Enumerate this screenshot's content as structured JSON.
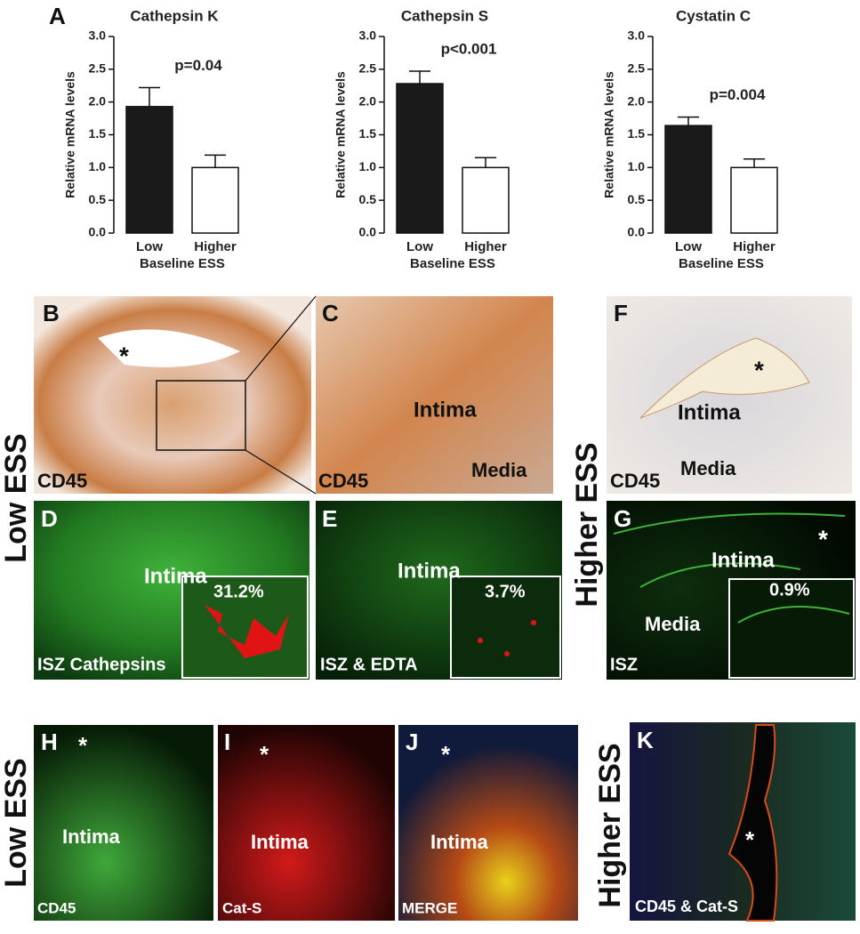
{
  "figure_label": "A",
  "chart_data": [
    {
      "type": "bar",
      "title": "Cathepsin K",
      "ylabel": "Relative mRNA levels",
      "xlabel": "Baseline ESS",
      "categories": [
        "Low",
        "Higher"
      ],
      "values": [
        1.93,
        1.0
      ],
      "errors": [
        0.29,
        0.19
      ],
      "colors": [
        "#1a1a1a",
        "#ffffff"
      ],
      "annotation": "p=0.04",
      "ylim": [
        0,
        3
      ],
      "yticks": [
        {
          "value": 0,
          "label": "0.0"
        },
        {
          "value": 0.5,
          "label": "0.5"
        },
        {
          "value": 1,
          "label": "1.0"
        },
        {
          "value": 1.5,
          "label": "1.5"
        },
        {
          "value": 2,
          "label": "2.0"
        },
        {
          "value": 2.5,
          "label": "2.5"
        },
        {
          "value": 3,
          "label": "3.0"
        }
      ]
    },
    {
      "type": "bar",
      "title": "Cathepsin S",
      "ylabel": "Relative mRNA levels",
      "xlabel": "Baseline ESS",
      "categories": [
        "Low",
        "Higher"
      ],
      "values": [
        2.28,
        1.0
      ],
      "errors": [
        0.19,
        0.15
      ],
      "colors": [
        "#1a1a1a",
        "#ffffff"
      ],
      "annotation": "p<0.001",
      "ylim": [
        0,
        3
      ],
      "yticks": [
        {
          "value": 0,
          "label": "0.0"
        },
        {
          "value": 0.5,
          "label": "0.5"
        },
        {
          "value": 1,
          "label": "1.0"
        },
        {
          "value": 1.5,
          "label": "1.5"
        },
        {
          "value": 2,
          "label": "2.0"
        },
        {
          "value": 2.5,
          "label": "2.5"
        },
        {
          "value": 3,
          "label": "3.0"
        }
      ]
    },
    {
      "type": "bar",
      "title": "Cystatin C",
      "ylabel": "Relative mRNA levels",
      "xlabel": "Baseline ESS",
      "categories": [
        "Low",
        "Higher"
      ],
      "values": [
        1.64,
        1.0
      ],
      "errors": [
        0.13,
        0.13
      ],
      "colors": [
        "#1a1a1a",
        "#ffffff"
      ],
      "annotation": "p=0.004",
      "ylim": [
        0,
        3
      ],
      "yticks": [
        {
          "value": 0,
          "label": "0.0"
        },
        {
          "value": 0.5,
          "label": "0.5"
        },
        {
          "value": 1,
          "label": "1.0"
        },
        {
          "value": 1.5,
          "label": "1.5"
        },
        {
          "value": 2,
          "label": "2.0"
        },
        {
          "value": 2.5,
          "label": "2.5"
        },
        {
          "value": 3,
          "label": "3.0"
        }
      ]
    }
  ],
  "side_labels": [
    "Low ESS",
    "Higher ESS",
    "Low ESS",
    "Higher ESS"
  ],
  "panels": {
    "B": {
      "label": "B",
      "star": "*",
      "stain": "CD45"
    },
    "C": {
      "label": "C",
      "region": "Intima",
      "stain": "CD45",
      "layer": "Media"
    },
    "F": {
      "label": "F",
      "star": "*",
      "region": "Intima",
      "stain": "CD45",
      "layer": "Media"
    },
    "D": {
      "label": "D",
      "region": "Intima",
      "percent": "31.2%",
      "stain": "ISZ Cathepsins"
    },
    "E": {
      "label": "E",
      "region": "Intima",
      "percent": "3.7%",
      "stain": "ISZ & EDTA"
    },
    "G": {
      "label": "G",
      "star": "*",
      "region": "Intima",
      "layer": "Media",
      "percent": "0.9%",
      "stain": "ISZ"
    },
    "H": {
      "label": "H",
      "star": "*",
      "region": "Intima",
      "stain": "CD45"
    },
    "I": {
      "label": "I",
      "star": "*",
      "region": "Intima",
      "stain": "Cat-S"
    },
    "J": {
      "label": "J",
      "star": "*",
      "region": "Intima",
      "stain": "MERGE"
    },
    "K": {
      "label": "K",
      "star": "*",
      "stain": "CD45 & Cat-S"
    }
  }
}
